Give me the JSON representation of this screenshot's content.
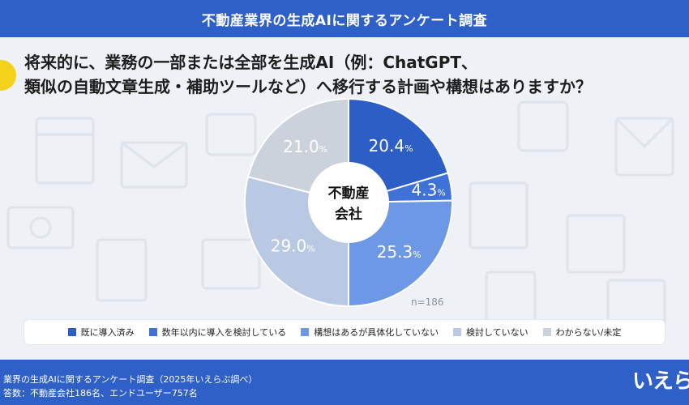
{
  "header": {
    "title": "不動産業界の生成AIに関するアンケート調査"
  },
  "question": {
    "line1": "将来的に、業務の一部または全部を生成AI（例：ChatGPT、",
    "line2": "類似の自動文章生成・補助ツールなど）へ移行する計画や構想はありますか？"
  },
  "chart_data": {
    "type": "pie",
    "center_label_line1": "不動産",
    "center_label_line2": "会社",
    "n_label": "n=186",
    "unit": "%",
    "series": [
      {
        "name": "既に導入済み",
        "value": 20.4,
        "color": "#2d5ec5",
        "label_color": "#ffffff"
      },
      {
        "name": "数年以内に導入を検討している",
        "value": 4.3,
        "color": "#3e72d8",
        "label_color": "#ffffff"
      },
      {
        "name": "構想はあるが具体化していない",
        "value": 25.3,
        "color": "#6c98e6",
        "label_color": "#ffffff"
      },
      {
        "name": "検討していない",
        "value": 29.0,
        "color": "#b9c9e3",
        "label_color": "#ffffff"
      },
      {
        "name": "わからない/未定",
        "value": 21.0,
        "color": "#cbd2dc",
        "label_color": "#ffffff"
      }
    ]
  },
  "footer": {
    "line1": "業界の生成AIに関するアンケート調査（2025年いえらぶ調べ）",
    "line2": "答数：不動産会社186名、エンドユーザー757名"
  },
  "logo": {
    "text": "いえら"
  }
}
